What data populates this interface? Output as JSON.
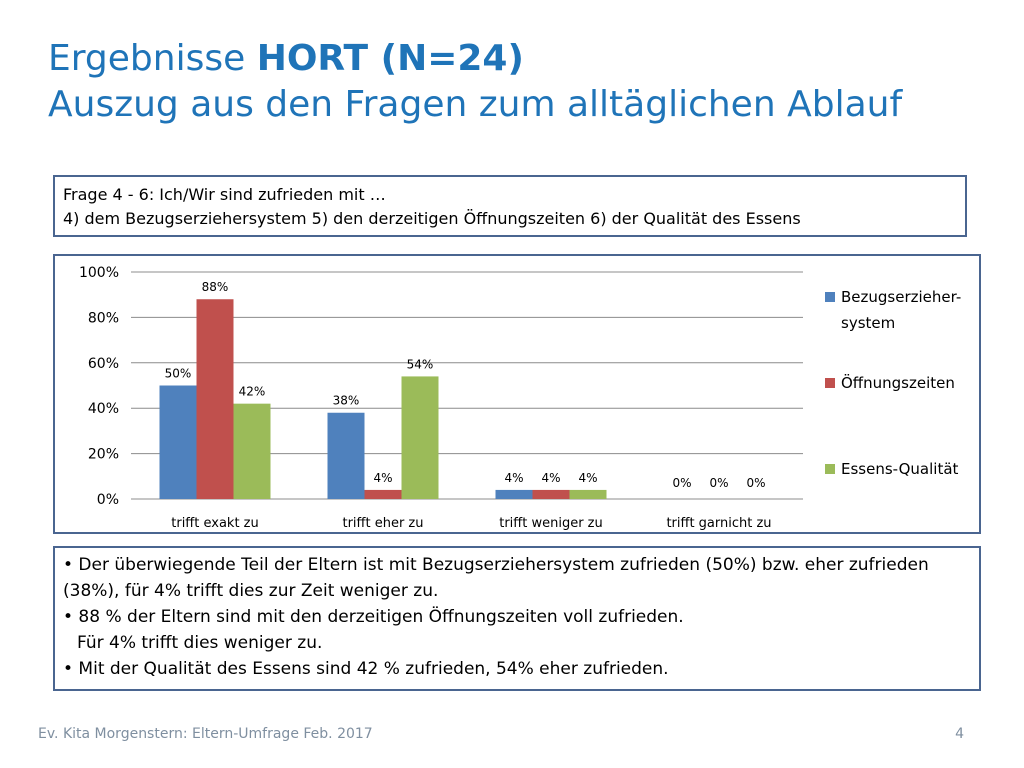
{
  "title": {
    "line1_prefix": "Ergebnisse ",
    "line1_bold": "HORT (N=24)",
    "line2": "Auszug aus den Fragen zum alltäglichen Ablauf"
  },
  "question": {
    "line1": "Frage 4 - 6: Ich/Wir sind zufrieden mit …",
    "line2": "4) dem Bezugserziehersystem 5) den derzeitigen Öffnungszeiten 6) der Qualität des Essens"
  },
  "chart_data": {
    "type": "bar",
    "categories": [
      "trifft exakt zu",
      "trifft eher zu",
      "trifft weniger zu",
      "trifft garnicht zu"
    ],
    "series": [
      {
        "name": "Bezugserzieher-system",
        "legend_lines": [
          "Bezugserzieher-",
          "system"
        ],
        "color": "#4f81bd",
        "values": [
          50,
          38,
          4,
          0
        ],
        "labels": [
          "50%",
          "38%",
          "4%",
          "0%"
        ]
      },
      {
        "name": "Öffnungszeiten",
        "legend_lines": [
          "Öffnungszeiten"
        ],
        "color": "#c0504d",
        "values": [
          88,
          4,
          4,
          0
        ],
        "labels": [
          "88%",
          "4%",
          "4%",
          "0%"
        ]
      },
      {
        "name": "Essens-Qualität",
        "legend_lines": [
          "Essens-Qualität"
        ],
        "color": "#9bbb59",
        "values": [
          42,
          54,
          4,
          0
        ],
        "labels": [
          "42%",
          "54%",
          "4%",
          "0%"
        ]
      }
    ],
    "yticks": [
      "0%",
      "20%",
      "40%",
      "60%",
      "80%",
      "100%"
    ],
    "ylim": [
      0,
      100
    ],
    "grid": true,
    "legend": "right"
  },
  "notes": [
    "• Der überwiegende Teil der Eltern ist mit Bezugserziehersystem zufrieden (50%) bzw. eher zufrieden (38%), für 4% trifft dies zur Zeit weniger zu.",
    "• 88 % der Eltern sind mit den derzeitigen Öffnungszeiten voll zufrieden.",
    "Für 4% trifft dies weniger zu.",
    "• Mit der Qualität des Essens sind 42 % zufrieden, 54% eher zufrieden."
  ],
  "footer": {
    "text": "Ev. Kita Morgenstern: Eltern-Umfrage Feb. 2017",
    "page": "4"
  }
}
